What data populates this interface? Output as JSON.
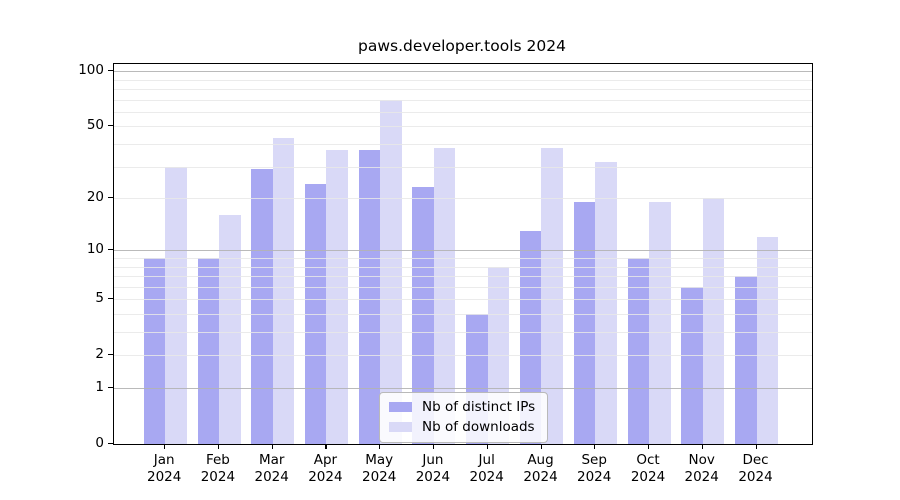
{
  "title": "paws.developer.tools 2024",
  "chart_data": {
    "type": "bar",
    "title": "paws.developer.tools 2024",
    "categories": [
      "Jan 2024",
      "Feb 2024",
      "Mar 2024",
      "Apr 2024",
      "May 2024",
      "Jun 2024",
      "Jul 2024",
      "Aug 2024",
      "Sep 2024",
      "Oct 2024",
      "Nov 2024",
      "Dec 2024"
    ],
    "series": [
      {
        "name": "Nb of distinct IPs",
        "color": "#a8a8f2",
        "values": [
          9,
          9,
          29,
          24,
          37,
          23,
          4,
          13,
          19,
          9,
          6,
          7
        ]
      },
      {
        "name": "Nb of downloads",
        "color": "#d9d9f7",
        "values": [
          30,
          16,
          43,
          37,
          70,
          38,
          8,
          38,
          32,
          19,
          20,
          12
        ]
      }
    ],
    "xlabel": "",
    "ylabel": "",
    "y_axis": {
      "scale": "log10(value+1)",
      "tick_values": [
        0,
        1,
        2,
        5,
        10,
        20,
        50,
        100
      ],
      "minor_grid_values": [
        2,
        3,
        4,
        5,
        6,
        7,
        8,
        9,
        20,
        30,
        40,
        50,
        60,
        70,
        80,
        90
      ],
      "major_grid_values": [
        1,
        10,
        100
      ],
      "ylim": [
        0,
        110
      ]
    },
    "grid": "horizontal",
    "legend_position": "lower center inside plot"
  },
  "legend": {
    "items": [
      {
        "label": "Nb of distinct IPs",
        "color": "#a8a8f2"
      },
      {
        "label": "Nb of downloads",
        "color": "#d9d9f7"
      }
    ]
  },
  "colors": {
    "bar_distinct_ips": "#a8a8f2",
    "bar_downloads": "#d9d9f7",
    "grid_minor": "#e8e8e8",
    "grid_major": "#b2b2b2",
    "axis": "#000000",
    "legend_border": "#b9b9b9",
    "background": "#ffffff",
    "text": "#000000"
  }
}
